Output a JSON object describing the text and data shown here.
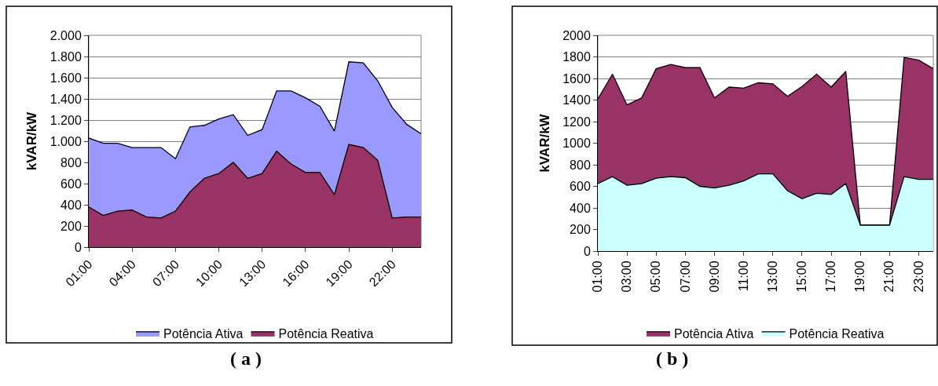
{
  "chart_data": [
    {
      "type": "area",
      "title": "( a )",
      "ylabel": "kVAR/kW",
      "categories": [
        "01:00",
        null,
        null,
        "04:00",
        null,
        null,
        "07:00",
        null,
        null,
        "10:00",
        null,
        null,
        "13:00",
        null,
        null,
        "16:00",
        null,
        null,
        "19:00",
        null,
        null,
        "22:00",
        null,
        null
      ],
      "series": [
        {
          "name": "Potência Ativa",
          "color": "#9999ff",
          "values": [
            1030,
            980,
            980,
            940,
            940,
            940,
            835,
            1135,
            1150,
            1210,
            1250,
            1055,
            1110,
            1475,
            1475,
            1410,
            1330,
            1095,
            1750,
            1740,
            1570,
            1320,
            1160,
            1070
          ]
        },
        {
          "name": "Potência Reativa",
          "color": "#993366",
          "values": [
            380,
            300,
            340,
            350,
            285,
            275,
            340,
            520,
            650,
            695,
            800,
            650,
            695,
            905,
            785,
            705,
            705,
            495,
            970,
            940,
            820,
            275,
            285,
            285
          ]
        }
      ],
      "ylim": [
        0,
        2000
      ],
      "yticks": [
        {
          "value": 0,
          "label": "0"
        },
        {
          "value": 200,
          "label": "200"
        },
        {
          "value": 400,
          "label": "400"
        },
        {
          "value": 600,
          "label": "600"
        },
        {
          "value": 800,
          "label": "800"
        },
        {
          "value": 1000,
          "label": "1.000"
        },
        {
          "value": 1200,
          "label": "1.200"
        },
        {
          "value": 1400,
          "label": "1.400"
        },
        {
          "value": 1600,
          "label": "1.600"
        },
        {
          "value": 1800,
          "label": "1.800"
        },
        {
          "value": 2000,
          "label": "2.000"
        }
      ],
      "grid": "y",
      "legend": "bottom"
    },
    {
      "type": "area",
      "title": "( b )",
      "ylabel": "kVAR/kW",
      "categories": [
        "01:00",
        null,
        "03:00",
        null,
        "05:00",
        null,
        "07:00",
        null,
        "09:00",
        null,
        "11:00",
        null,
        "13:00",
        null,
        "15:00",
        null,
        "17:00",
        null,
        "19:00",
        null,
        "21:00",
        null,
        "23:00",
        null
      ],
      "series": [
        {
          "name": "Potência Ativa",
          "color": "#993366",
          "values": [
            1410,
            1640,
            1355,
            1420,
            1690,
            1730,
            1700,
            1700,
            1420,
            1520,
            1510,
            1560,
            1550,
            1435,
            1525,
            1640,
            1520,
            1665,
            240,
            240,
            240,
            1795,
            1770,
            1690
          ]
        },
        {
          "name": "Potência Reativa",
          "color": "#ccffff",
          "values": [
            625,
            690,
            610,
            625,
            675,
            690,
            680,
            600,
            585,
            610,
            650,
            715,
            715,
            560,
            485,
            535,
            525,
            625,
            240,
            240,
            240,
            690,
            665,
            665
          ]
        }
      ],
      "ylim": [
        0,
        2000
      ],
      "yticks": [
        0,
        200,
        400,
        600,
        800,
        1000,
        1200,
        1400,
        1600,
        1800,
        2000
      ],
      "grid": "y",
      "legend": "bottom"
    }
  ]
}
